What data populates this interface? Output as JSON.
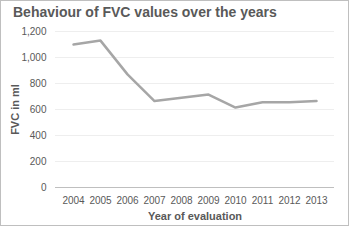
{
  "chart_data": {
    "type": "line",
    "title": "Behaviour of FVC values over the years",
    "x_label": "Year of evaluation",
    "y_label": "FVC in ml",
    "categories": [
      "2004",
      "2005",
      "2006",
      "2007",
      "2008",
      "2009",
      "2010",
      "2011",
      "2012",
      "2013"
    ],
    "values": [
      1100,
      1130,
      870,
      665,
      690,
      715,
      615,
      655,
      655,
      665
    ],
    "color": "#a6a6a6",
    "ylim": [
      0,
      1200
    ],
    "yticks": [
      0,
      200,
      400,
      600,
      800,
      1000,
      1200
    ],
    "grid": true
  }
}
